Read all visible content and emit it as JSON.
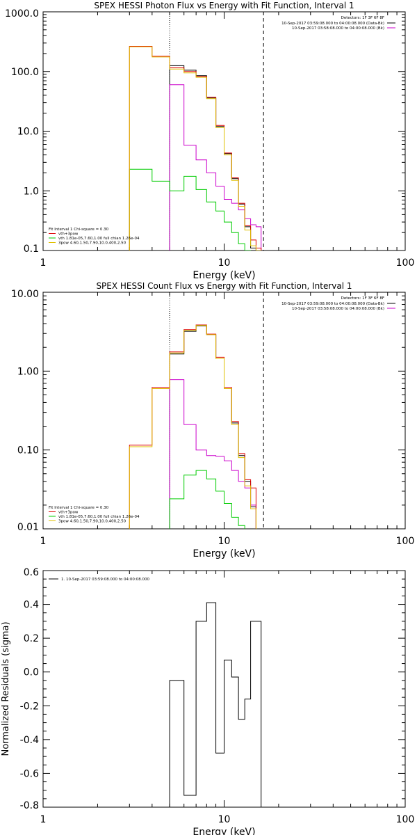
{
  "chart_data": [
    {
      "type": "line",
      "title": "SPEX HESSI Photon Flux vs Energy with Fit Function, Interval 1",
      "xlabel": "Energy (keV)",
      "ylabel": "",
      "xscale": "log",
      "yscale": "log",
      "xlim": [
        1,
        100
      ],
      "ylim": [
        0.1,
        1000
      ],
      "xticks": [
        1,
        10,
        100
      ],
      "xtick_labels": [
        "1",
        "10",
        "100"
      ],
      "yticks": [
        0.1,
        1,
        10,
        100,
        1000
      ],
      "ytick_labels": [
        "0.1",
        "1.0",
        "10.0",
        "100.0",
        "1000.0"
      ],
      "grid": false,
      "edges": [
        3,
        4,
        5,
        6,
        7,
        8,
        9,
        10,
        11,
        12,
        13,
        14,
        15,
        16
      ],
      "vlines": [
        {
          "x": 5.0,
          "style": "dotted",
          "color": "#000000"
        },
        {
          "x": 16.5,
          "style": "dashed",
          "color": "#000000"
        }
      ],
      "legend_top": {
        "placement": "top-right",
        "header": "Detectors: 1F 3F 6F 8F",
        "entries": [
          {
            "label": "10-Sep-2017 03:59:08.000 to 04:00:08.000 (Data-Bk)",
            "color": "#000000"
          },
          {
            "label": "10-Sep-2017 03:58:08.000 to 04:00:08.000 (Bk)",
            "color": "#cc00cc"
          }
        ]
      },
      "legend_bottom": {
        "placement": "bottom-left",
        "header": "Fit Interval 1    Chi-square = 0.30",
        "entries": [
          {
            "label": "vth+3pow",
            "color": "#dd0000"
          },
          {
            "label": "vth 1.81e-05,7.60,1.00  full chian 1.26e-04",
            "color": "#00cc00"
          },
          {
            "label": "3pow 4.60,1.50,7.90,10.0,400,2.50",
            "color": "#e0c000"
          }
        ]
      },
      "series": [
        {
          "color": "#000000",
          "width": 1,
          "values": [
            null,
            null,
            125,
            105,
            85,
            36,
            12,
            4.2,
            1.6,
            0.6,
            0.25,
            0.11,
            0.1
          ]
        },
        {
          "color": "#cc00cc",
          "width": 1,
          "values": [
            null,
            null,
            60,
            5.8,
            3.3,
            2.0,
            1.2,
            0.72,
            0.62,
            0.48,
            0.34,
            0.27,
            0.25
          ]
        },
        {
          "color": "#00cc00",
          "width": 1,
          "values": [
            2.3,
            1.45,
            1.0,
            1.75,
            1.05,
            0.65,
            0.46,
            0.3,
            0.2,
            0.13,
            0.1,
            null,
            null
          ]
        },
        {
          "color": "#dd0000",
          "width": 1,
          "values": [
            265,
            180,
            115,
            100,
            83,
            37,
            12.5,
            4.3,
            1.65,
            0.62,
            0.26,
            0.15,
            0.11
          ]
        },
        {
          "color": "#e0c000",
          "width": 1,
          "values": [
            260,
            175,
            110,
            95,
            80,
            35,
            11.5,
            4.0,
            1.5,
            0.55,
            0.22,
            0.12,
            0.1
          ]
        }
      ]
    },
    {
      "type": "line",
      "title": "SPEX HESSI Count Flux vs Energy with Fit Function, Interval 1",
      "xlabel": "Energy (keV)",
      "ylabel": "",
      "xscale": "log",
      "yscale": "log",
      "xlim": [
        1,
        100
      ],
      "ylim": [
        0.01,
        10
      ],
      "xticks": [
        1,
        10,
        100
      ],
      "xtick_labels": [
        "1",
        "10",
        "100"
      ],
      "yticks": [
        0.01,
        0.1,
        1,
        10
      ],
      "ytick_labels": [
        "0.01",
        "0.10",
        "1.00",
        "10.00"
      ],
      "grid": false,
      "edges": [
        3,
        4,
        5,
        6,
        7,
        8,
        9,
        10,
        11,
        12,
        13,
        14,
        15,
        16
      ],
      "vlines": [
        {
          "x": 5.0,
          "style": "dotted",
          "color": "#000000"
        },
        {
          "x": 16.5,
          "style": "dashed",
          "color": "#000000"
        }
      ],
      "legend_top": {
        "placement": "top-right",
        "header": "Detectors: 1F 3F 6F 8F",
        "entries": [
          {
            "label": "10-Sep-2017 03:59:08.000 to 04:00:08.000 (Data-Bk)",
            "color": "#000000"
          },
          {
            "label": "10-Sep-2017 03:58:08.000 to 04:00:08.000 (Bk)",
            "color": "#cc00cc"
          }
        ]
      },
      "legend_bottom": {
        "placement": "bottom-left",
        "header": "Fit Interval 1    Chi-square = 0.30",
        "entries": [
          {
            "label": "vth+3pow",
            "color": "#dd0000"
          },
          {
            "label": "vth 1.81e-05,7.60,1.00  full chian 1.26e-04",
            "color": "#00cc00"
          },
          {
            "label": "3pow 4.60,1.50,7.90,10.0,400,2.50",
            "color": "#e0c000"
          }
        ]
      },
      "series": [
        {
          "color": "#000000",
          "width": 1,
          "values": [
            null,
            null,
            1.65,
            3.2,
            3.75,
            2.9,
            1.45,
            0.6,
            0.22,
            0.085,
            0.04,
            0.019,
            null
          ]
        },
        {
          "color": "#cc00cc",
          "width": 1,
          "values": [
            null,
            null,
            0.78,
            0.21,
            0.1,
            0.085,
            0.083,
            0.073,
            0.055,
            0.04,
            0.033,
            0.02,
            null
          ]
        },
        {
          "color": "#00cc00",
          "width": 1,
          "values": [
            null,
            null,
            0.024,
            0.048,
            0.055,
            0.043,
            0.03,
            0.021,
            0.014,
            0.011,
            null,
            null,
            null
          ]
        },
        {
          "color": "#dd0000",
          "width": 1,
          "values": [
            0.115,
            0.62,
            1.75,
            3.35,
            3.85,
            2.95,
            1.5,
            0.62,
            0.23,
            0.09,
            0.042,
            0.033,
            null
          ]
        },
        {
          "color": "#e0c000",
          "width": 1,
          "values": [
            0.11,
            0.6,
            1.7,
            3.3,
            3.8,
            2.9,
            1.45,
            0.6,
            0.21,
            0.08,
            0.035,
            0.018,
            null
          ]
        }
      ]
    },
    {
      "type": "line",
      "title": "",
      "xlabel": "Energy (keV)",
      "ylabel": "Normalized Residuals (sigma)",
      "xscale": "log",
      "yscale": "linear",
      "xlim": [
        1,
        100
      ],
      "ylim": [
        -0.8,
        0.6
      ],
      "xticks": [
        1,
        10,
        100
      ],
      "xtick_labels": [
        "1",
        "10",
        "100"
      ],
      "yticks": [
        -0.8,
        -0.6,
        -0.4,
        -0.2,
        0.0,
        0.2,
        0.4,
        0.6
      ],
      "ytick_labels": [
        "-0.8",
        "-0.6",
        "-0.4",
        "-0.2",
        "0.0",
        "0.2",
        "0.4",
        "0.6"
      ],
      "grid": false,
      "edges": [
        5,
        6,
        7,
        8,
        9,
        10,
        11,
        12,
        13,
        14,
        15,
        16
      ],
      "vlines": [],
      "legend_top": {
        "placement": "top-left",
        "header": "",
        "entries": [
          {
            "label": "1. 10-Sep-2017 03:59:08.000 to 04:00:08.000",
            "color": "#000000"
          }
        ]
      },
      "legend_bottom": null,
      "series": [
        {
          "color": "#000000",
          "width": 1,
          "values": [
            -0.05,
            -0.73,
            0.3,
            0.41,
            -0.48,
            0.07,
            -0.03,
            -0.28,
            -0.16,
            0.3,
            0.3
          ],
          "end": -0.8
        }
      ]
    }
  ]
}
